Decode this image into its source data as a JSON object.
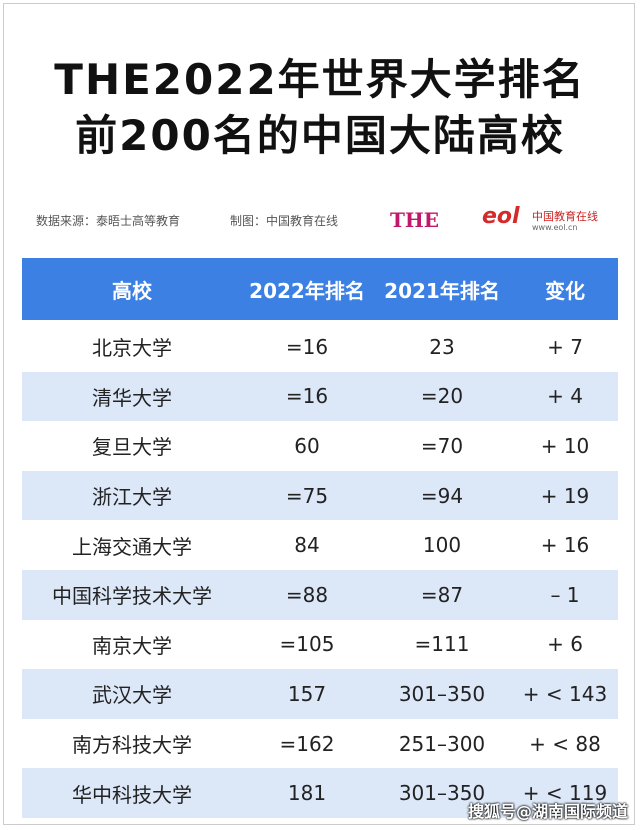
{
  "header": {
    "title_lines": [
      "THE2022年世界大学排名",
      "前200名的中国大陆高校"
    ],
    "source": "数据来源：泰晤士高等教育",
    "maker": "制图：中国教育在线",
    "logo_the": "THE",
    "logo_eol": "eol",
    "logo_eol_name": "中国教育在线",
    "logo_eol_url": "www.eol.cn"
  },
  "table": {
    "columns": [
      "高校",
      "2022年排名",
      "2021年排名",
      "变化"
    ],
    "rows": [
      [
        "北京大学",
        "=16",
        "23",
        "+ 7"
      ],
      [
        "清华大学",
        "=16",
        "=20",
        "+ 4"
      ],
      [
        "复旦大学",
        "60",
        "=70",
        "+ 10"
      ],
      [
        "浙江大学",
        "=75",
        "=94",
        "+ 19"
      ],
      [
        "上海交通大学",
        "84",
        "100",
        "+ 16"
      ],
      [
        "中国科学技术大学",
        "=88",
        "=87",
        "– 1"
      ],
      [
        "南京大学",
        "=105",
        "=111",
        "+ 6"
      ],
      [
        "武汉大学",
        "157",
        "301–350",
        "+ < 143"
      ],
      [
        "南方科技大学",
        "=162",
        "251–300",
        "+ < 88"
      ],
      [
        "华中科技大学",
        "181",
        "301–350",
        "+ < 119"
      ]
    ]
  },
  "watermark": "搜狐号@湖南国际频道"
}
